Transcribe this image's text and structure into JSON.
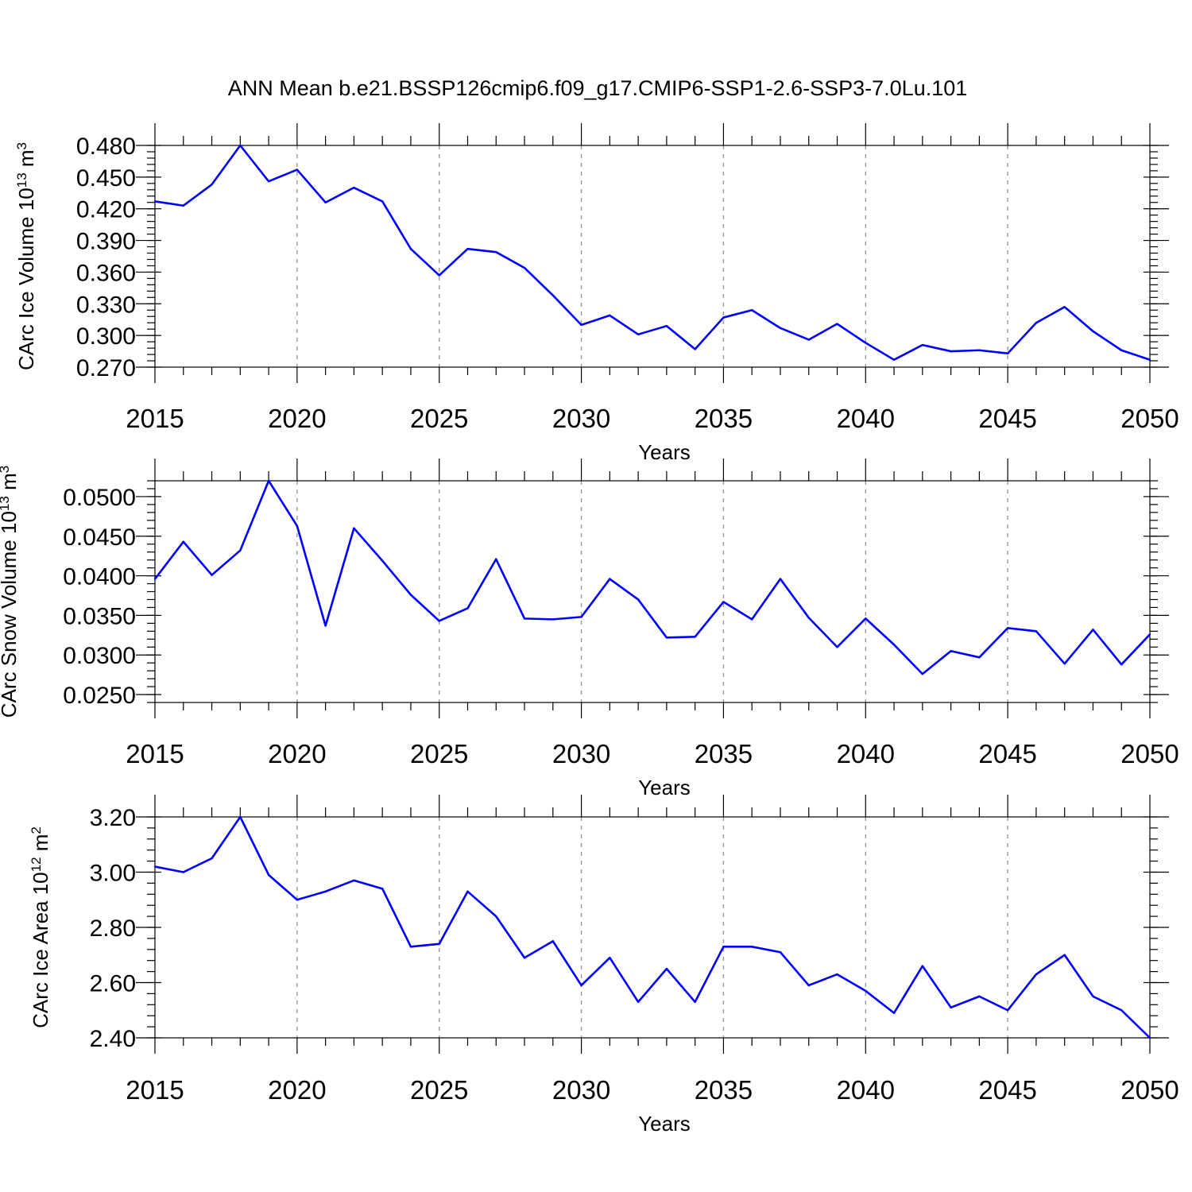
{
  "figure_title": "ANN Mean b.e21.BSSP126cmip6.f09_g17.CMIP6-SSP1-2.6-SSP3-7.0Lu.101",
  "colors": {
    "series": "#0000ff",
    "grid": "#999999",
    "axis": "#000000"
  },
  "chart_data": [
    {
      "type": "line",
      "title": "",
      "xlabel": "Years",
      "ylabel_main": "CArc Ice Volume 10",
      "ylabel_exp": "13",
      "ylabel_unit": " m",
      "ylabel_unit_exp": "3",
      "xlim": [
        2015,
        2050
      ],
      "ylim": [
        0.27,
        0.48
      ],
      "x_ticks": [
        "2015",
        "2020",
        "2025",
        "2030",
        "2035",
        "2040",
        "2045",
        "2050"
      ],
      "y_ticks": [
        "0.270",
        "0.300",
        "0.330",
        "0.360",
        "0.390",
        "0.420",
        "0.450",
        "0.480"
      ],
      "grid": "vertical dashed at major x ticks",
      "x": [
        2015,
        2016,
        2017,
        2018,
        2019,
        2020,
        2021,
        2022,
        2023,
        2024,
        2025,
        2026,
        2027,
        2028,
        2029,
        2030,
        2031,
        2032,
        2033,
        2034,
        2035,
        2036,
        2037,
        2038,
        2039,
        2040,
        2041,
        2042,
        2043,
        2044,
        2045,
        2046,
        2047,
        2048,
        2049,
        2050
      ],
      "series": [
        {
          "values": [
            0.427,
            0.423,
            0.443,
            0.48,
            0.446,
            0.457,
            0.426,
            0.44,
            0.427,
            0.382,
            0.357,
            0.382,
            0.379,
            0.364,
            0.338,
            0.31,
            0.319,
            0.301,
            0.309,
            0.287,
            0.317,
            0.324,
            0.307,
            0.296,
            0.311,
            0.293,
            0.277,
            0.291,
            0.285,
            0.286,
            0.283,
            0.312,
            0.327,
            0.304,
            0.286,
            0.277
          ]
        }
      ]
    },
    {
      "type": "line",
      "title": "",
      "xlabel": "Years",
      "ylabel_main": "CArc Snow Volume 10",
      "ylabel_exp": "13",
      "ylabel_unit": " m",
      "ylabel_unit_exp": "3",
      "xlim": [
        2015,
        2050
      ],
      "ylim": [
        0.024,
        0.052
      ],
      "x_ticks": [
        "2015",
        "2020",
        "2025",
        "2030",
        "2035",
        "2040",
        "2045",
        "2050"
      ],
      "y_ticks": [
        "0.0250",
        "0.0300",
        "0.0350",
        "0.0400",
        "0.0450",
        "0.0500"
      ],
      "grid": "vertical dashed at major x ticks",
      "x": [
        2015,
        2016,
        2017,
        2018,
        2019,
        2020,
        2021,
        2022,
        2023,
        2024,
        2025,
        2026,
        2027,
        2028,
        2029,
        2030,
        2031,
        2032,
        2033,
        2034,
        2035,
        2036,
        2037,
        2038,
        2039,
        2040,
        2041,
        2042,
        2043,
        2044,
        2045,
        2046,
        2047,
        2048,
        2049,
        2050
      ],
      "series": [
        {
          "values": [
            0.0396,
            0.0443,
            0.0401,
            0.0432,
            0.052,
            0.0463,
            0.0337,
            0.046,
            0.0419,
            0.0376,
            0.0343,
            0.0359,
            0.0421,
            0.0346,
            0.0345,
            0.0348,
            0.0396,
            0.037,
            0.0322,
            0.0323,
            0.0367,
            0.0345,
            0.0396,
            0.0347,
            0.031,
            0.0346,
            0.0313,
            0.0276,
            0.0305,
            0.0297,
            0.0334,
            0.033,
            0.0289,
            0.0332,
            0.0288,
            0.0326
          ]
        }
      ]
    },
    {
      "type": "line",
      "title": "",
      "xlabel": "Years",
      "ylabel_main": "CArc Ice Area 10",
      "ylabel_exp": "12",
      "ylabel_unit": " m",
      "ylabel_unit_exp": "2",
      "xlim": [
        2015,
        2050
      ],
      "ylim": [
        2.4,
        3.2
      ],
      "x_ticks": [
        "2015",
        "2020",
        "2025",
        "2030",
        "2035",
        "2040",
        "2045",
        "2050"
      ],
      "y_ticks": [
        "2.40",
        "2.60",
        "2.80",
        "3.00",
        "3.20"
      ],
      "grid": "vertical dashed at major x ticks",
      "x": [
        2015,
        2016,
        2017,
        2018,
        2019,
        2020,
        2021,
        2022,
        2023,
        2024,
        2025,
        2026,
        2027,
        2028,
        2029,
        2030,
        2031,
        2032,
        2033,
        2034,
        2035,
        2036,
        2037,
        2038,
        2039,
        2040,
        2041,
        2042,
        2043,
        2044,
        2045,
        2046,
        2047,
        2048,
        2049,
        2050
      ],
      "series": [
        {
          "values": [
            3.02,
            3.0,
            3.05,
            3.2,
            2.99,
            2.9,
            2.93,
            2.97,
            2.94,
            2.73,
            2.74,
            2.93,
            2.84,
            2.69,
            2.75,
            2.59,
            2.69,
            2.53,
            2.65,
            2.53,
            2.73,
            2.73,
            2.71,
            2.59,
            2.63,
            2.57,
            2.49,
            2.66,
            2.51,
            2.55,
            2.5,
            2.63,
            2.7,
            2.55,
            2.5,
            2.4
          ]
        }
      ]
    }
  ]
}
